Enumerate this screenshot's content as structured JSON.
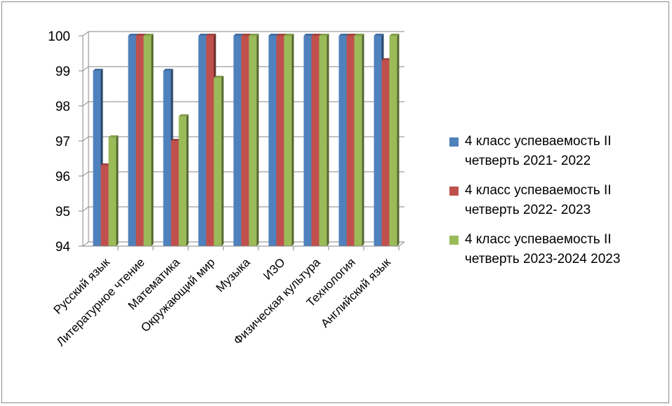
{
  "chart_data": {
    "type": "bar",
    "categories": [
      "Русский язык",
      "Литературное чтение",
      "Математика",
      "Окружающий мир",
      "Музыка",
      "ИЗО",
      "Физическая культура",
      "Технология",
      "Английский  язык"
    ],
    "series": [
      {
        "name": "4 класс успеваемость II четверть 2021- 2022",
        "color": "#4f81bd",
        "values": [
          99,
          100,
          99,
          100,
          100,
          100,
          100,
          100,
          100
        ]
      },
      {
        "name": "4 класс успеваемость II четверть 2022- 2023",
        "color": "#c0504d",
        "values": [
          96.3,
          100,
          97,
          100,
          100,
          100,
          100,
          100,
          99.3
        ]
      },
      {
        "name": "4 класс успеваемость II четверть 2023-2024 2023",
        "color": "#9bbb59",
        "values": [
          97.1,
          100,
          97.7,
          98.8,
          100,
          100,
          100,
          100,
          100
        ]
      }
    ],
    "yticks": [
      "94",
      "95",
      "96",
      "97",
      "98",
      "99",
      "100"
    ],
    "ylim": [
      94,
      100
    ],
    "grid": true,
    "legend_position": "right",
    "style": "3d-clustered-column"
  },
  "legend": {
    "items": [
      {
        "line1": "4 класс успеваемость II",
        "line2": "четверть 2021- 2022"
      },
      {
        "line1": "4 класс успеваемость II",
        "line2": "четверть 2022- 2023"
      },
      {
        "line1": "4 класс успеваемость II",
        "line2": "четверть 2023-2024 2023"
      }
    ]
  }
}
